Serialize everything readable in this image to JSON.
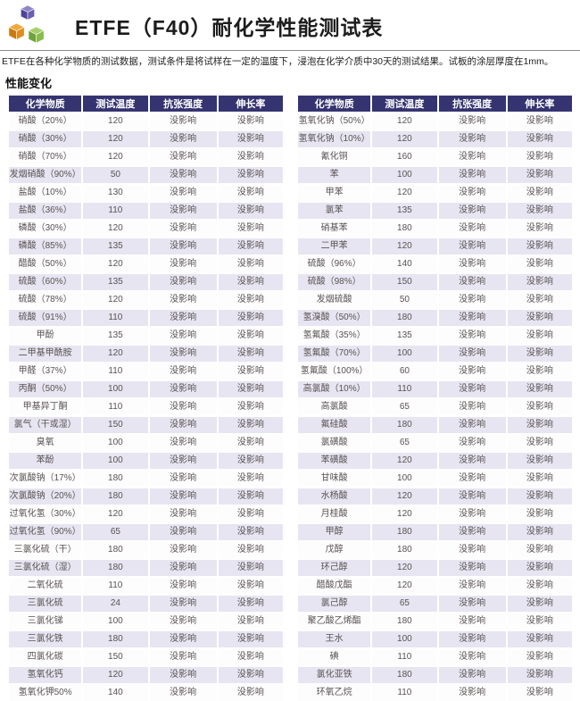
{
  "page": {
    "title": "ETFE（F40）耐化学性能测试表",
    "description": "ETFE在各种化学物质的测试数据，测试条件是将试样在一定的温度下，浸泡在化学介质中30天的测试结果。试板的涂层厚度在1mm。",
    "section_title": "性能变化"
  },
  "logo": {
    "icon": "three-cubes-logo",
    "cube_colors": {
      "top_cube": "#5a4fa2",
      "left_cube": "#e08d1d",
      "right_cube": "#7fb548"
    }
  },
  "table_columns": [
    "化学物质",
    "测试温度",
    "抗张强度",
    "伸长率"
  ],
  "no_effect_label": "没影响",
  "tables": {
    "left": {
      "rows": [
        [
          "硝酸（20%）",
          "120",
          "没影响",
          "没影响"
        ],
        [
          "硝酸（30%）",
          "120",
          "没影响",
          "没影响"
        ],
        [
          "硝酸（70%）",
          "120",
          "没影响",
          "没影响"
        ],
        [
          "发烟硝酸（90%）",
          "50",
          "没影响",
          "没影响"
        ],
        [
          "盐酸（10%）",
          "130",
          "没影响",
          "没影响"
        ],
        [
          "盐酸（36%）",
          "110",
          "没影响",
          "没影响"
        ],
        [
          "磷酸（30%）",
          "120",
          "没影响",
          "没影响"
        ],
        [
          "磷酸（85%）",
          "135",
          "没影响",
          "没影响"
        ],
        [
          "醋酸（50%）",
          "120",
          "没影响",
          "没影响"
        ],
        [
          "硫酸（60%）",
          "135",
          "没影响",
          "没影响"
        ],
        [
          "硫酸（78%）",
          "120",
          "没影响",
          "没影响"
        ],
        [
          "硫酸（91%）",
          "110",
          "没影响",
          "没影响"
        ],
        [
          "甲酚",
          "135",
          "没影响",
          "没影响"
        ],
        [
          "二甲基甲酰胺",
          "120",
          "没影响",
          "没影响"
        ],
        [
          "甲醛（37%）",
          "110",
          "没影响",
          "没影响"
        ],
        [
          "丙酮（50%）",
          "100",
          "没影响",
          "没影响"
        ],
        [
          "甲基异丁酮",
          "110",
          "没影响",
          "没影响"
        ],
        [
          "氯气（干或湿）",
          "150",
          "没影响",
          "没影响"
        ],
        [
          "臭氧",
          "100",
          "没影响",
          "没影响"
        ],
        [
          "苯酚",
          "100",
          "没影响",
          "没影响"
        ],
        [
          "次氯酸钠（17%）",
          "180",
          "没影响",
          "没影响"
        ],
        [
          "次氯酸钠（20%）",
          "180",
          "没影响",
          "没影响"
        ],
        [
          "过氧化氢（30%）",
          "120",
          "没影响",
          "没影响"
        ],
        [
          "过氧化氢（90%）",
          "65",
          "没影响",
          "没影响"
        ],
        [
          "三氯化硫（干）",
          "180",
          "没影响",
          "没影响"
        ],
        [
          "三氯化硫（湿）",
          "180",
          "没影响",
          "没影响"
        ],
        [
          "二氧化硫",
          "110",
          "没影响",
          "没影响"
        ],
        [
          "三氯化硫",
          "24",
          "没影响",
          "没影响"
        ],
        [
          "三氯化锑",
          "100",
          "没影响",
          "没影响"
        ],
        [
          "三氯化铁",
          "180",
          "没影响",
          "没影响"
        ],
        [
          "四氯化碳",
          "150",
          "没影响",
          "没影响"
        ],
        [
          "氢氧化钙",
          "120",
          "没影响",
          "没影响"
        ],
        [
          "氢氧化钾50%",
          "140",
          "没影响",
          "没影响"
        ]
      ]
    },
    "right": {
      "rows": [
        [
          "氢氧化钠（50%）",
          "120",
          "没影响",
          "没影响"
        ],
        [
          "氢氧化钠（10%）",
          "120",
          "没影响",
          "没影响"
        ],
        [
          "氰化铜",
          "160",
          "没影响",
          "没影响"
        ],
        [
          "苯",
          "100",
          "没影响",
          "没影响"
        ],
        [
          "甲苯",
          "120",
          "没影响",
          "没影响"
        ],
        [
          "氯苯",
          "135",
          "没影响",
          "没影响"
        ],
        [
          "硝基苯",
          "180",
          "没影响",
          "没影响"
        ],
        [
          "二甲苯",
          "120",
          "没影响",
          "没影响"
        ],
        [
          "硫酸（96%）",
          "140",
          "没影响",
          "没影响"
        ],
        [
          "硫酸（98%）",
          "150",
          "没影响",
          "没影响"
        ],
        [
          "发烟硫酸",
          "50",
          "没影响",
          "没影响"
        ],
        [
          "氢溴酸（50%）",
          "180",
          "没影响",
          "没影响"
        ],
        [
          "氢氟酸（35%）",
          "135",
          "没影响",
          "没影响"
        ],
        [
          "氢氟酸（70%）",
          "100",
          "没影响",
          "没影响"
        ],
        [
          "氢氟酸（100%）",
          "60",
          "没影响",
          "没影响"
        ],
        [
          "高氯酸（10%）",
          "110",
          "没影响",
          "没影响"
        ],
        [
          "高氯酸",
          "65",
          "没影响",
          "没影响"
        ],
        [
          "氟硅酸",
          "180",
          "没影响",
          "没影响"
        ],
        [
          "氯磺酸",
          "65",
          "没影响",
          "没影响"
        ],
        [
          "苯磺酸",
          "120",
          "没影响",
          "没影响"
        ],
        [
          "甘味酸",
          "100",
          "没影响",
          "没影响"
        ],
        [
          "水杨酸",
          "120",
          "没影响",
          "没影响"
        ],
        [
          "月桂酸",
          "120",
          "没影响",
          "没影响"
        ],
        [
          "甲醇",
          "180",
          "没影响",
          "没影响"
        ],
        [
          "戊醇",
          "180",
          "没影响",
          "没影响"
        ],
        [
          "环己醇",
          "120",
          "没影响",
          "没影响"
        ],
        [
          "醋酸戊酯",
          "120",
          "没影响",
          "没影响"
        ],
        [
          "氯己醇",
          "65",
          "没影响",
          "没影响"
        ],
        [
          "聚乙酸乙烯酯",
          "180",
          "没影响",
          "没影响"
        ],
        [
          "王水",
          "100",
          "没影响",
          "没影响"
        ],
        [
          "碘",
          "110",
          "没影响",
          "没影响"
        ],
        [
          "氯化亚铁",
          "180",
          "没影响",
          "没影响"
        ],
        [
          "环氧乙烷",
          "110",
          "没影响",
          "没影响"
        ]
      ]
    }
  },
  "colors": {
    "header_bg": "#353470",
    "header_text": "#ffffff",
    "row_stripe": "#e6e5f1",
    "cell_text": "#5a5252"
  }
}
